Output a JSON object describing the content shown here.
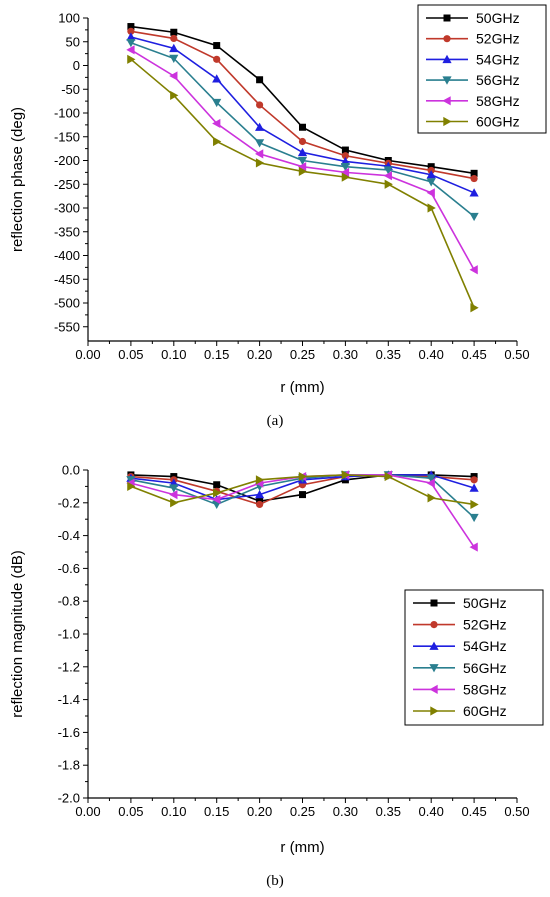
{
  "chart_data": [
    {
      "type": "line",
      "caption": "(a)",
      "xlabel": "r (mm)",
      "ylabel": "reflection phase (deg)",
      "xlim": [
        0.0,
        0.5
      ],
      "ylim": [
        -580,
        100
      ],
      "x_ticks": [
        "0.00",
        "0.05",
        "0.10",
        "0.15",
        "0.20",
        "0.25",
        "0.30",
        "0.35",
        "0.40",
        "0.45",
        "0.50"
      ],
      "y_ticks": [
        "100",
        "50",
        "0",
        "-50",
        "-100",
        "-150",
        "-200",
        "-250",
        "-300",
        "-350",
        "-400",
        "-450",
        "-500",
        "-550"
      ],
      "x_tick_values": [
        0,
        0.05,
        0.1,
        0.15,
        0.2,
        0.25,
        0.3,
        0.35,
        0.4,
        0.45,
        0.5
      ],
      "y_tick_values": [
        100,
        50,
        0,
        -50,
        -100,
        -150,
        -200,
        -250,
        -300,
        -350,
        -400,
        -450,
        -500,
        -550
      ],
      "grid": false,
      "legend_position": "top-right",
      "x": [
        0.05,
        0.1,
        0.15,
        0.2,
        0.25,
        0.3,
        0.35,
        0.4,
        0.45
      ],
      "series": [
        {
          "name": "50GHz",
          "color": "#000000",
          "marker": "square",
          "values": [
            82,
            70,
            42,
            -30,
            -130,
            -178,
            -200,
            -213,
            -227
          ]
        },
        {
          "name": "52GHz",
          "color": "#c0392b",
          "marker": "circle",
          "values": [
            72,
            57,
            13,
            -83,
            -160,
            -190,
            -206,
            -221,
            -238
          ]
        },
        {
          "name": "54GHz",
          "color": "#1f1fe0",
          "marker": "triangle-up",
          "values": [
            60,
            36,
            -28,
            -130,
            -183,
            -202,
            -212,
            -230,
            -268
          ]
        },
        {
          "name": "56GHz",
          "color": "#2a7f8f",
          "marker": "triangle-down",
          "values": [
            48,
            15,
            -78,
            -163,
            -200,
            -213,
            -220,
            -245,
            -318
          ]
        },
        {
          "name": "58GHz",
          "color": "#cc33dd",
          "marker": "triangle-left",
          "values": [
            33,
            -22,
            -122,
            -186,
            -213,
            -225,
            -232,
            -268,
            -430
          ]
        },
        {
          "name": "60GHz",
          "color": "#808000",
          "marker": "triangle-right",
          "values": [
            13,
            -63,
            -160,
            -205,
            -223,
            -235,
            -250,
            -300,
            -510
          ]
        }
      ]
    },
    {
      "type": "line",
      "caption": "(b)",
      "xlabel": "r (mm)",
      "ylabel": "reflection magnitude (dB)",
      "xlim": [
        0.0,
        0.5
      ],
      "ylim": [
        -2.0,
        0.0
      ],
      "x_ticks": [
        "0.00",
        "0.05",
        "0.10",
        "0.15",
        "0.20",
        "0.25",
        "0.30",
        "0.35",
        "0.40",
        "0.45",
        "0.50"
      ],
      "y_ticks": [
        "0.0",
        "-0.2",
        "-0.4",
        "-0.6",
        "-0.8",
        "-1.0",
        "-1.2",
        "-1.4",
        "-1.6",
        "-1.8",
        "-2.0"
      ],
      "x_tick_values": [
        0,
        0.05,
        0.1,
        0.15,
        0.2,
        0.25,
        0.3,
        0.35,
        0.4,
        0.45,
        0.5
      ],
      "y_tick_values": [
        0,
        -0.2,
        -0.4,
        -0.6,
        -0.8,
        -1.0,
        -1.2,
        -1.4,
        -1.6,
        -1.8,
        -2.0
      ],
      "grid": false,
      "legend_position": "right",
      "x": [
        0.05,
        0.1,
        0.15,
        0.2,
        0.25,
        0.3,
        0.35,
        0.4,
        0.45
      ],
      "series": [
        {
          "name": "50GHz",
          "color": "#000000",
          "marker": "square",
          "values": [
            -0.03,
            -0.04,
            -0.09,
            -0.19,
            -0.15,
            -0.06,
            -0.03,
            -0.03,
            -0.04
          ]
        },
        {
          "name": "52GHz",
          "color": "#c0392b",
          "marker": "circle",
          "values": [
            -0.04,
            -0.06,
            -0.13,
            -0.21,
            -0.09,
            -0.04,
            -0.03,
            -0.04,
            -0.06
          ]
        },
        {
          "name": "54GHz",
          "color": "#1f1fe0",
          "marker": "triangle-up",
          "values": [
            -0.05,
            -0.08,
            -0.18,
            -0.15,
            -0.06,
            -0.04,
            -0.03,
            -0.03,
            -0.11
          ]
        },
        {
          "name": "56GHz",
          "color": "#2a7f8f",
          "marker": "triangle-down",
          "values": [
            -0.06,
            -0.11,
            -0.21,
            -0.1,
            -0.05,
            -0.03,
            -0.03,
            -0.05,
            -0.29
          ]
        },
        {
          "name": "58GHz",
          "color": "#cc33dd",
          "marker": "triangle-left",
          "values": [
            -0.08,
            -0.15,
            -0.18,
            -0.08,
            -0.04,
            -0.03,
            -0.03,
            -0.08,
            -0.47
          ]
        },
        {
          "name": "60GHz",
          "color": "#808000",
          "marker": "triangle-right",
          "values": [
            -0.1,
            -0.2,
            -0.14,
            -0.06,
            -0.04,
            -0.03,
            -0.04,
            -0.17,
            -0.21
          ]
        }
      ]
    }
  ]
}
